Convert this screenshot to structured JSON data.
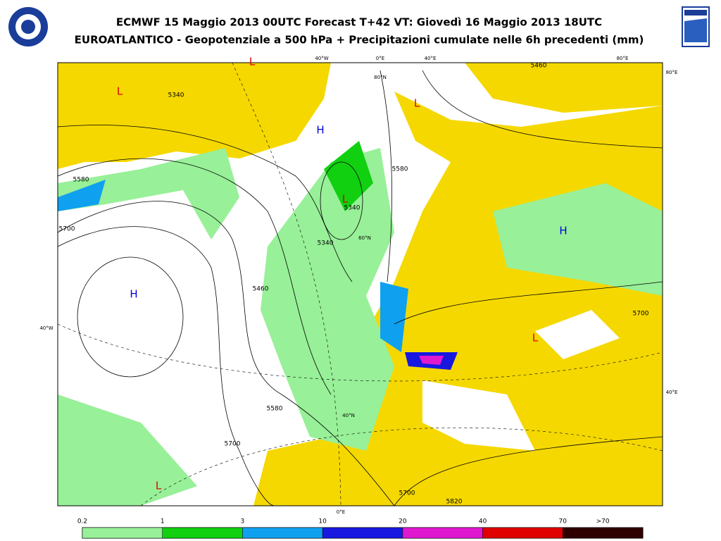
{
  "header": {
    "title_line1": "ECMWF 15 Maggio 2013 00UTC Forecast T+42 VT: Giovedì 16 Maggio 2013 18UTC",
    "title_line2": "EUROATLANTICO - Geopotenziale a 500 hPa + Precipitazioni cumulate nelle 6h precedenti (mm)"
  },
  "map": {
    "grid_labels": [
      "40°W",
      "0°E",
      "40°E",
      "80°E",
      "80°E",
      "40°W",
      "40°E",
      "0°E",
      "80°N",
      "60°N",
      "40°N"
    ],
    "pressure_centers": [
      {
        "label": "L",
        "color": "#e00000"
      },
      {
        "label": "L",
        "color": "#e00000"
      },
      {
        "label": "L",
        "color": "#e00000"
      },
      {
        "label": "L",
        "color": "#e00000"
      },
      {
        "label": "L",
        "color": "#e00000"
      },
      {
        "label": "L",
        "color": "#e00000"
      },
      {
        "label": "H",
        "color": "#0000e0"
      },
      {
        "label": "H",
        "color": "#0000e0"
      },
      {
        "label": "H",
        "color": "#0000e0"
      }
    ],
    "contour_labels": [
      "5340",
      "5580",
      "5700",
      "5460",
      "5580",
      "5340",
      "5340",
      "5460",
      "5580",
      "5700",
      "5700",
      "5820",
      "5700"
    ]
  },
  "legend": {
    "thresholds": [
      "0.2",
      "1",
      "3",
      "10",
      "20",
      "40",
      "70",
      ">70"
    ],
    "colors": [
      "#98f098",
      "#10d010",
      "#10a0f0",
      "#1818e0",
      "#e018d0",
      "#e00000",
      "#300000"
    ]
  }
}
